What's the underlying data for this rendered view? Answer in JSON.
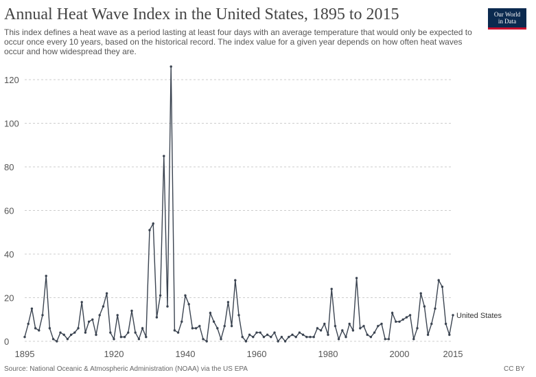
{
  "header": {
    "title": "Annual Heat Wave Index in the United States, 1895 to 2015",
    "subtitle": "This index defines a heat wave as a period lasting at least four days with an average temperature that would only be expected to occur once every 10 years, based on the historical record. The index value for a given year depends on how often heat waves occur and how widespread they are.",
    "logo_line1": "Our World",
    "logo_line2": "in Data"
  },
  "footer": {
    "source": "Source: National Oceanic & Atmospheric Administration (NOAA) via the US EPA",
    "license": "CC BY"
  },
  "colors": {
    "line": "#3a4350",
    "logo_bg": "#0b2a4f",
    "logo_accent": "#c8102e",
    "grid": "#cccccc"
  },
  "chart_data": {
    "type": "line",
    "title": "Annual Heat Wave Index in the United States, 1895 to 2015",
    "xlabel": "",
    "ylabel": "",
    "xlim": [
      1895,
      2015
    ],
    "ylim": [
      0,
      120
    ],
    "grid": true,
    "x_ticks": [
      1895,
      1920,
      1940,
      1960,
      1980,
      2000,
      2015
    ],
    "y_ticks": [
      0,
      20,
      40,
      60,
      80,
      100,
      120
    ],
    "series": [
      {
        "name": "United States",
        "x": [
          1895,
          1896,
          1897,
          1898,
          1899,
          1900,
          1901,
          1902,
          1903,
          1904,
          1905,
          1906,
          1907,
          1908,
          1909,
          1910,
          1911,
          1912,
          1913,
          1914,
          1915,
          1916,
          1917,
          1918,
          1919,
          1920,
          1921,
          1922,
          1923,
          1924,
          1925,
          1926,
          1927,
          1928,
          1929,
          1930,
          1931,
          1932,
          1933,
          1934,
          1935,
          1936,
          1937,
          1938,
          1939,
          1940,
          1941,
          1942,
          1943,
          1944,
          1945,
          1946,
          1947,
          1948,
          1949,
          1950,
          1951,
          1952,
          1953,
          1954,
          1955,
          1956,
          1957,
          1958,
          1959,
          1960,
          1961,
          1962,
          1963,
          1964,
          1965,
          1966,
          1967,
          1968,
          1969,
          1970,
          1971,
          1972,
          1973,
          1974,
          1975,
          1976,
          1977,
          1978,
          1979,
          1980,
          1981,
          1982,
          1983,
          1984,
          1985,
          1986,
          1987,
          1988,
          1989,
          1990,
          1991,
          1992,
          1993,
          1994,
          1995,
          1996,
          1997,
          1998,
          1999,
          2000,
          2001,
          2002,
          2003,
          2004,
          2005,
          2006,
          2007,
          2008,
          2009,
          2010,
          2011,
          2012,
          2013,
          2014,
          2015
        ],
        "y": [
          2,
          8,
          15,
          6,
          5,
          12,
          30,
          6,
          1,
          0,
          4,
          3,
          1,
          3,
          4,
          6,
          18,
          4,
          9,
          10,
          3,
          12,
          16,
          22,
          4,
          1,
          12,
          2,
          2,
          4,
          14,
          4,
          1,
          6,
          2,
          51,
          54,
          11,
          21,
          85,
          16,
          126,
          5,
          4,
          9,
          21,
          17,
          6,
          6,
          7,
          1,
          0,
          13,
          9,
          6,
          1,
          7,
          18,
          7,
          28,
          12,
          2,
          0,
          3,
          2,
          4,
          4,
          2,
          3,
          2,
          4,
          0,
          2,
          0,
          2,
          3,
          2,
          4,
          3,
          2,
          2,
          2,
          6,
          5,
          8,
          3,
          24,
          7,
          1,
          5,
          2,
          8,
          5,
          29,
          6,
          7,
          3,
          2,
          4,
          7,
          8,
          1,
          1,
          13,
          9,
          9,
          10,
          11,
          12,
          1,
          6,
          22,
          16,
          3,
          8,
          15,
          28,
          25,
          8,
          3,
          12
        ]
      }
    ]
  }
}
